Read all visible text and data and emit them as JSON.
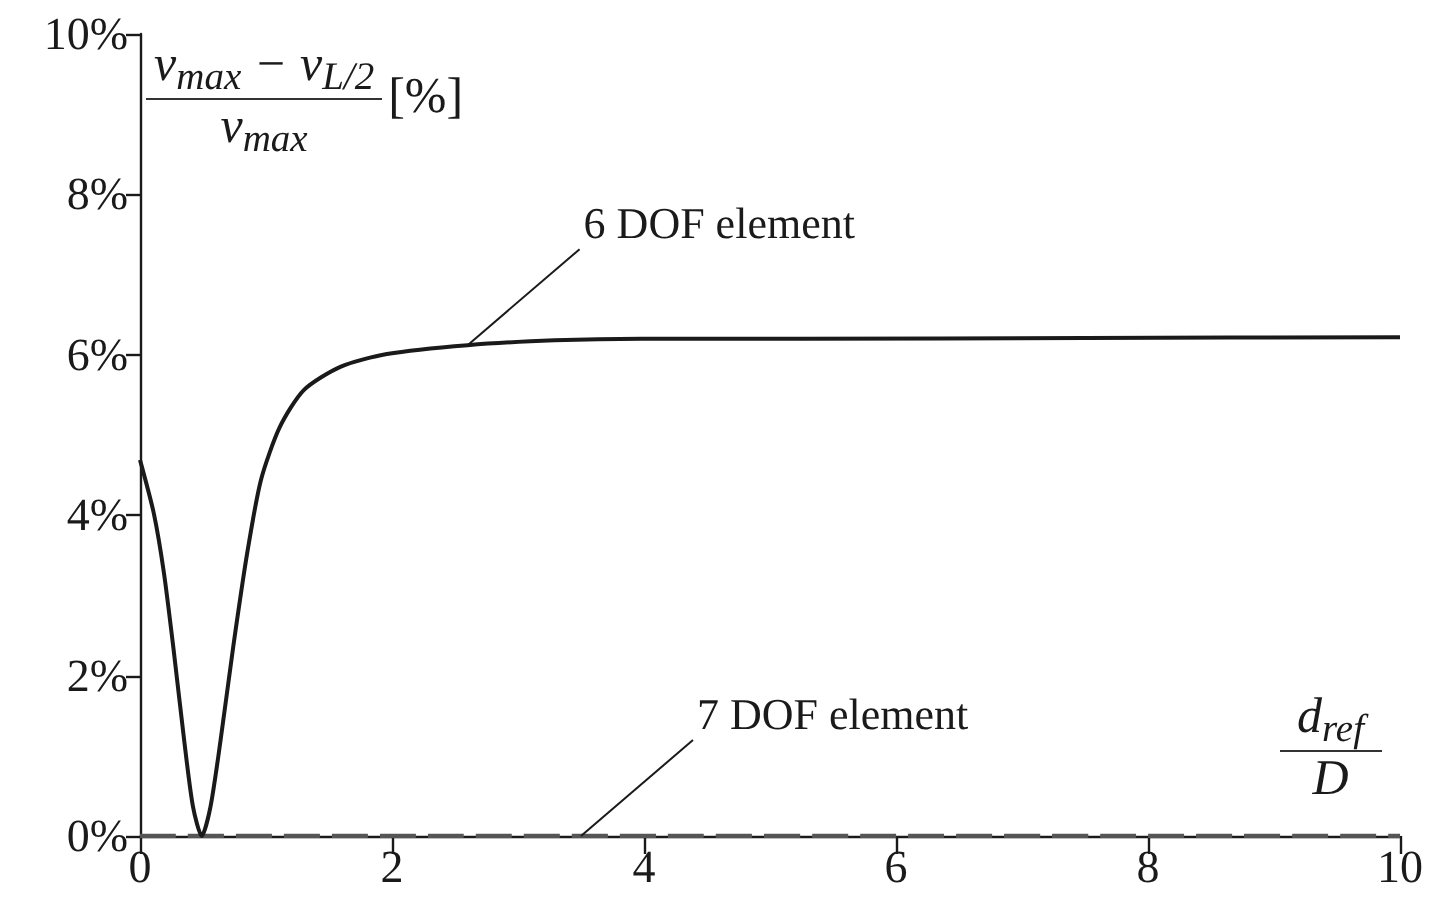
{
  "chart_data": {
    "type": "line",
    "xlabel": "d$_{ref}$ D",
    "ylabel": "v$_{max}$ − v$_{L/2}$ v$_{max}$ [%]",
    "series": [
      {
        "color": "#1a1a1a",
        "line_style": "solid",
        "x": [
          0,
          0.11,
          0.19,
          0.27,
          0.35,
          0.42,
          0.49,
          0.56,
          0.64,
          0.74,
          0.85,
          0.96,
          1.11,
          1.3,
          1.59,
          1.96,
          2.6,
          3.29,
          3.98,
          5.25,
          7.5,
          10
        ],
        "values": [
          4.69,
          4.02,
          3.28,
          2.28,
          1.2,
          0.37,
          0,
          0.37,
          1.2,
          2.36,
          3.52,
          4.44,
          5.1,
          5.56,
          5.85,
          6.01,
          6.12,
          6.18,
          6.2,
          6.2,
          6.21,
          6.22
        ]
      },
      {
        "color": "#555555",
        "line_style": "dashed",
        "x": [
          0,
          10
        ],
        "values": [
          0,
          0
        ]
      }
    ],
    "annotations": [
      {
        "text": "6 DOF element",
        "x": 2.6,
        "y": 6.12
      },
      {
        "text": "7 DOF element",
        "x": 3.5,
        "y": 0
      }
    ],
    "xlim": [
      0,
      10
    ],
    "xticks": [
      0,
      2,
      4,
      6,
      8,
      10
    ],
    "ylim": [
      0,
      10
    ],
    "yticks": [
      {
        "value": 0,
        "label": "0%"
      },
      {
        "value": 2,
        "label": "2%"
      },
      {
        "value": 4,
        "label": "4%"
      },
      {
        "value": 6,
        "label": "6%"
      },
      {
        "value": 8,
        "label": "8%"
      },
      {
        "value": 10,
        "label": "10%"
      }
    ],
    "grid": false,
    "marker": "none"
  }
}
